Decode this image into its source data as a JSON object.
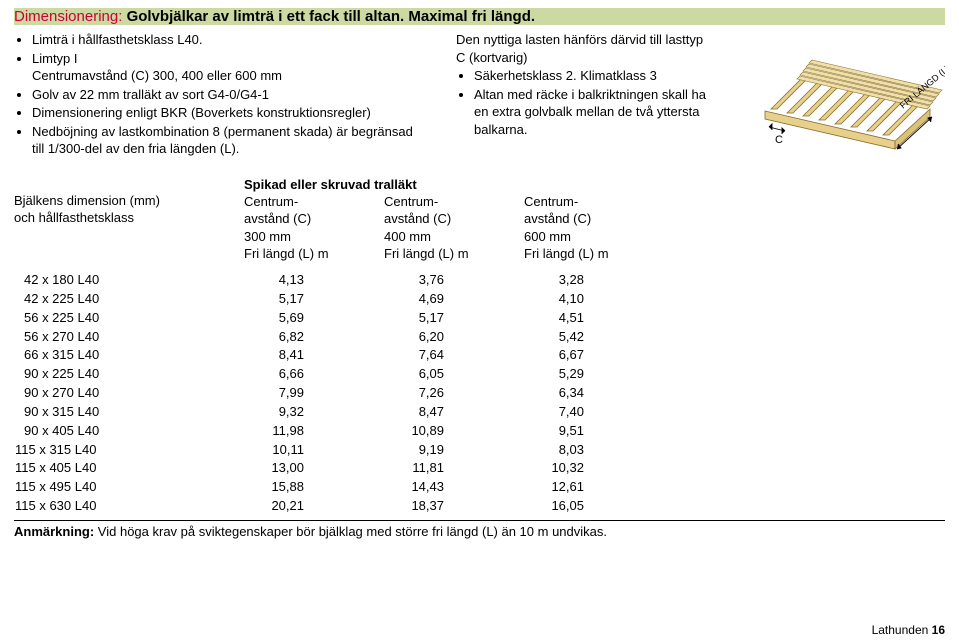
{
  "title": {
    "label": "Dimensionering:",
    "text": "Golvbjälkar av limträ i ett fack till altan. Maximal fri längd."
  },
  "bullets_left": [
    "Limträ i hållfasthetsklass L40.",
    "Centrumavstånd (C) 300, 400 eller 600 mm",
    "Golv av 22 mm tralläkt av sort G4-0/G4-1",
    "Dimensionering enligt BKR (Boverkets konstruktionsregler)",
    "Nedböjning av lastkombination 8 (permanent skada) är begränsad till 1/300-del av den fria längden (L)."
  ],
  "bullet_prefix_1": "Limtyp I",
  "mid_text": {
    "l1": "Den nyttiga lasten hänförs därvid till lasttyp C (kortvarig)",
    "l2a": "Säkerhetsklass 2. Klimatklass 3",
    "l2b": "Altan med räcke i balkriktningen skall ha en extra golvbalk mellan de två yttersta balkarna."
  },
  "diagram": {
    "label_c": "C",
    "label_fri": "FRI LÄNGD (L)",
    "stroke": "#8a6b2a",
    "fill": "#e6d08c"
  },
  "table": {
    "head_left_l1": "Bjälkens dimension (mm)",
    "head_left_l2": "och hållfasthetsklass",
    "super_header": "Spikad eller skruvad tralläkt",
    "col_header_l1": "Centrum-",
    "col_header_l2": "avstånd (C)",
    "col_header_l4": "Fri längd (L) m",
    "col_c": [
      "300 mm",
      "400 mm",
      "600 mm"
    ],
    "rows": [
      {
        "d": " 42 x 180 L40",
        "v": [
          "4,13",
          "3,76",
          "3,28"
        ]
      },
      {
        "d": " 42 x 225 L40",
        "v": [
          "5,17",
          "4,69",
          "4,10"
        ]
      },
      {
        "d": " 56 x 225 L40",
        "v": [
          "5,69",
          "5,17",
          "4,51"
        ]
      },
      {
        "d": " 56 x 270 L40",
        "v": [
          "6,82",
          "6,20",
          "5,42"
        ]
      },
      {
        "d": " 66 x 315 L40",
        "v": [
          "8,41",
          "7,64",
          "6,67"
        ]
      },
      {
        "d": " 90 x 225 L40",
        "v": [
          "6,66",
          "6,05",
          "5,29"
        ]
      },
      {
        "d": " 90 x 270 L40",
        "v": [
          "7,99",
          "7,26",
          "6,34"
        ]
      },
      {
        "d": " 90 x 315 L40",
        "v": [
          "9,32",
          "8,47",
          "7,40"
        ]
      },
      {
        "d": " 90 x 405 L40",
        "v": [
          "11,98",
          "10,89",
          "9,51"
        ]
      },
      {
        "d": "115 x 315 L40",
        "v": [
          "10,11",
          "9,19",
          "8,03"
        ]
      },
      {
        "d": "115 x 405 L40",
        "v": [
          "13,00",
          "11,81",
          "10,32"
        ]
      },
      {
        "d": "115 x 495 L40",
        "v": [
          "15,88",
          "14,43",
          "12,61"
        ]
      },
      {
        "d": "115 x 630 L40",
        "v": [
          "20,21",
          "18,37",
          "16,05"
        ]
      }
    ]
  },
  "footnote": {
    "label": "Anmärkning:",
    "text": "Vid höga krav på sviktegenskaper bör bjälklag med större fri längd (L) än 10 m undvikas."
  },
  "footer": {
    "book": "Lathunden",
    "page": "16"
  }
}
